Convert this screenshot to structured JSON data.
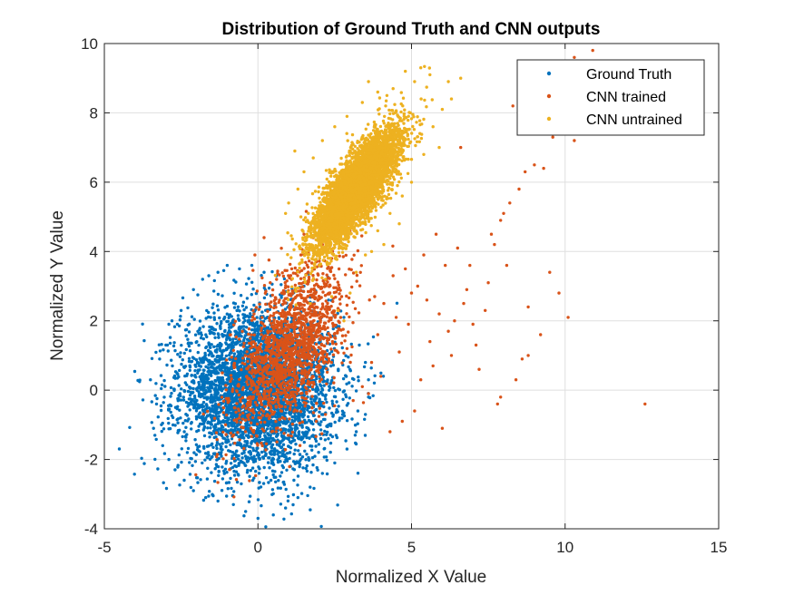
{
  "chart_data": {
    "type": "scatter",
    "title": "Distribution of Ground Truth and CNN outputs",
    "xlabel": "Normalized X Value",
    "ylabel": "Normalized Y Value",
    "xlim": [
      -5,
      15
    ],
    "ylim": [
      -4,
      10
    ],
    "xticks": [
      -5,
      0,
      5,
      10,
      15
    ],
    "yticks": [
      -4,
      -2,
      0,
      2,
      4,
      6,
      8,
      10
    ],
    "xtick_labels": [
      "-5",
      "0",
      "5",
      "10",
      "15"
    ],
    "ytick_labels": [
      "-4",
      "-2",
      "0",
      "2",
      "4",
      "6",
      "8",
      "10"
    ],
    "grid": true,
    "legend_position": "top-right",
    "series": [
      {
        "name": "Ground Truth",
        "color": "#0072BD",
        "marker": "dot",
        "distribution": {
          "center": [
            0.0,
            0.0
          ],
          "std": [
            1.25,
            1.15
          ],
          "correlation": 0.0,
          "count": 4200
        },
        "points": [
          [
            -3.3,
            -0.4
          ],
          [
            -3.2,
            0.9
          ],
          [
            -2.9,
            1.9
          ],
          [
            -2.8,
            2.0
          ],
          [
            -2.5,
            2.3
          ],
          [
            -2.1,
            2.9
          ],
          [
            -1.8,
            3.2
          ],
          [
            -1.6,
            3.3
          ],
          [
            -1.3,
            3.4
          ],
          [
            -1.0,
            3.6
          ],
          [
            -0.6,
            3.5
          ],
          [
            -0.2,
            3.6
          ],
          [
            0.2,
            3.4
          ],
          [
            0.6,
            3.3
          ],
          [
            -3.4,
            -1.1
          ],
          [
            -3.1,
            -1.6
          ],
          [
            -2.9,
            -2.0
          ],
          [
            -2.7,
            -2.3
          ],
          [
            -2.4,
            -2.6
          ],
          [
            -2.1,
            -2.9
          ],
          [
            -1.7,
            -3.1
          ],
          [
            -1.3,
            -3.2
          ],
          [
            -0.8,
            -3.3
          ],
          [
            -0.4,
            -3.5
          ],
          [
            0.0,
            -3.7
          ],
          [
            0.5,
            -3.6
          ],
          [
            0.9,
            -3.4
          ],
          [
            1.3,
            -3.1
          ],
          [
            1.7,
            -2.8
          ],
          [
            2.1,
            -2.4
          ],
          [
            2.5,
            -2.1
          ],
          [
            2.9,
            -1.7
          ],
          [
            3.2,
            -1.2
          ],
          [
            3.5,
            -0.7
          ],
          [
            3.6,
            -0.2
          ],
          [
            3.6,
            0.3
          ],
          [
            3.5,
            0.8
          ],
          [
            3.3,
            1.3
          ],
          [
            -3.5,
            0.3
          ],
          [
            2.8,
            2.1
          ],
          [
            2.3,
            2.6
          ],
          [
            1.5,
            3.0
          ]
        ]
      },
      {
        "name": "CNN trained",
        "color": "#D95319",
        "marker": "dot",
        "distribution": {
          "center": [
            1.0,
            1.2
          ],
          "std": [
            0.9,
            1.2
          ],
          "correlation": 0.55,
          "count": 1700
        },
        "points": [
          [
            12.6,
            -0.4
          ],
          [
            10.9,
            9.8
          ],
          [
            10.3,
            9.6
          ],
          [
            9.9,
            8.5
          ],
          [
            9.4,
            7.8
          ],
          [
            9.0,
            6.5
          ],
          [
            8.7,
            6.3
          ],
          [
            8.5,
            5.8
          ],
          [
            8.2,
            5.4
          ],
          [
            7.9,
            4.9
          ],
          [
            7.6,
            4.5
          ],
          [
            10.3,
            7.2
          ],
          [
            10.1,
            2.1
          ],
          [
            9.5,
            3.4
          ],
          [
            9.8,
            2.8
          ],
          [
            9.2,
            1.6
          ],
          [
            8.8,
            1.0
          ],
          [
            8.6,
            0.9
          ],
          [
            8.1,
            3.6
          ],
          [
            7.9,
            -0.2
          ],
          [
            7.2,
            0.6
          ],
          [
            7.0,
            1.9
          ],
          [
            6.8,
            2.9
          ],
          [
            6.5,
            4.1
          ],
          [
            6.1,
            3.6
          ],
          [
            5.9,
            2.2
          ],
          [
            5.6,
            1.4
          ],
          [
            5.3,
            0.3
          ],
          [
            5.1,
            -0.6
          ],
          [
            4.7,
            -0.9
          ],
          [
            4.4,
            3.3
          ],
          [
            4.1,
            2.5
          ],
          [
            3.9,
            1.6
          ],
          [
            3.7,
            0.8
          ],
          [
            3.4,
            0.1
          ],
          [
            3.1,
            -0.3
          ],
          [
            3.0,
            4.6
          ],
          [
            2.6,
            2.9
          ],
          [
            2.9,
            1.2
          ],
          [
            6.0,
            -1.1
          ],
          [
            4.3,
            -1.2
          ],
          [
            6.3,
            1.0
          ],
          [
            7.4,
            2.3
          ],
          [
            5.8,
            4.5
          ],
          [
            5.2,
            3.0
          ],
          [
            9.3,
            6.4
          ],
          [
            8.3,
            8.2
          ],
          [
            8.8,
            2.4
          ],
          [
            6.6,
            7.0
          ],
          [
            7.7,
            4.2
          ],
          [
            6.9,
            3.6
          ],
          [
            5.5,
            2.6
          ],
          [
            4.9,
            1.9
          ],
          [
            4.6,
            1.1
          ],
          [
            4.0,
            0.4
          ],
          [
            3.6,
            -0.1
          ],
          [
            5.0,
            2.8
          ],
          [
            7.1,
            1.3
          ],
          [
            8.0,
            5.1
          ],
          [
            9.6,
            7.3
          ],
          [
            6.2,
            1.7
          ],
          [
            5.7,
            0.7
          ],
          [
            4.5,
            2.1
          ],
          [
            6.7,
            2.5
          ],
          [
            7.5,
            3.1
          ],
          [
            8.4,
            0.3
          ],
          [
            7.8,
            -0.4
          ],
          [
            5.4,
            3.9
          ],
          [
            6.4,
            2.0
          ],
          [
            3.8,
            2.7
          ],
          [
            4.8,
            3.5
          ],
          [
            2.1,
            4.2
          ],
          [
            1.8,
            4.4
          ],
          [
            1.5,
            4.5
          ],
          [
            2.4,
            3.8
          ],
          [
            0.2,
            4.4
          ],
          [
            -0.1,
            3.9
          ],
          [
            0.4,
            3.1
          ],
          [
            0.6,
            -1.1
          ],
          [
            0.8,
            -0.8
          ],
          [
            1.9,
            -0.9
          ],
          [
            2.2,
            -0.7
          ],
          [
            1.1,
            3.5
          ],
          [
            1.4,
            3.9
          ]
        ]
      },
      {
        "name": "CNN untrained",
        "color": "#EDB120",
        "marker": "dot",
        "distribution": {
          "center": [
            3.2,
            5.8
          ],
          "std": [
            0.7,
            0.85
          ],
          "correlation": 0.8,
          "count": 5200
        },
        "points": [
          [
            6.6,
            9.0
          ],
          [
            6.2,
            8.9
          ],
          [
            5.6,
            9.1
          ],
          [
            5.1,
            8.9
          ],
          [
            4.8,
            9.2
          ],
          [
            4.4,
            8.7
          ],
          [
            3.9,
            8.6
          ],
          [
            3.4,
            8.3
          ],
          [
            2.9,
            7.9
          ],
          [
            2.5,
            7.6
          ],
          [
            2.1,
            7.2
          ],
          [
            1.8,
            6.7
          ],
          [
            1.5,
            6.3
          ],
          [
            1.3,
            5.8
          ],
          [
            1.4,
            5.0
          ],
          [
            1.6,
            4.5
          ],
          [
            1.8,
            4.1
          ],
          [
            2.0,
            3.6
          ],
          [
            2.2,
            3.2
          ],
          [
            2.4,
            2.7
          ],
          [
            2.6,
            2.3
          ],
          [
            1.7,
            2.5
          ],
          [
            2.8,
            2.0
          ],
          [
            3.0,
            2.8
          ],
          [
            3.2,
            3.4
          ],
          [
            3.5,
            3.9
          ],
          [
            3.9,
            4.6
          ],
          [
            4.3,
            5.1
          ],
          [
            4.7,
            5.6
          ],
          [
            5.0,
            6.0
          ],
          [
            5.4,
            6.8
          ],
          [
            5.7,
            7.6
          ],
          [
            6.0,
            8.1
          ],
          [
            5.9,
            7.0
          ],
          [
            6.3,
            8.4
          ],
          [
            4.6,
            4.8
          ],
          [
            4.1,
            4.2
          ],
          [
            3.7,
            4.0
          ],
          [
            1.0,
            5.4
          ],
          [
            1.2,
            6.9
          ],
          [
            3.6,
            8.9
          ],
          [
            4.2,
            8.5
          ],
          [
            0.9,
            5.1
          ],
          [
            5.3,
            9.3
          ]
        ]
      }
    ]
  }
}
